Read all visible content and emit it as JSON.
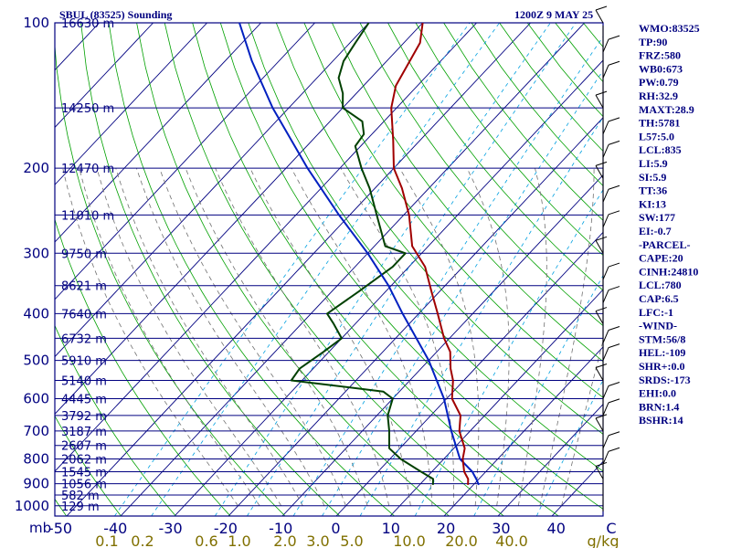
{
  "header": {
    "station": "SBUL (83525) Sounding",
    "time": "1200Z  9 MAY 25"
  },
  "indices": [
    "WMO:83525",
    "TP:90",
    "FRZ:580",
    "WB0:673",
    "PW:0.79",
    "RH:32.9",
    "MAXT:28.9",
    "TH:5781",
    "L57:5.0",
    "LCL:835",
    "LI:5.9",
    "SI:5.9",
    "TT:36",
    "KI:13",
    "SW:177",
    "EI:-0.7",
    "-PARCEL-",
    "CAPE:20",
    "CINH:24810",
    "LCL:780",
    "CAP:6.5",
    "LFC:-1",
    "-WIND-",
    "STM:56/8",
    "HEL:-109",
    "SHR+:0.0",
    "SRDS:-173",
    "EHI:0.0",
    "BRN:1.4",
    "BSHR:14"
  ],
  "chart_data": {
    "type": "skew-t log-p",
    "title": "SBUL (83525) Sounding",
    "date": "1200Z  9 MAY 25",
    "pressure_ticks": [
      "100",
      "200",
      "300",
      "400",
      "500",
      "600",
      "700",
      "800",
      "900",
      "1000"
    ],
    "pressure_unit": "mb",
    "temperature_ticks": [
      "-50",
      "-40",
      "-30",
      "-20",
      "-10",
      "0",
      "10",
      "20",
      "30",
      "40",
      "C"
    ],
    "mixing_ratio_ticks": [
      "0.1",
      "0.2",
      "0.6",
      "1.0",
      "2.0",
      "3.0",
      "5.0",
      "10.0",
      "20.0",
      "40.0",
      "g/kg"
    ],
    "height_labels": [
      {
        "p": 100,
        "label": "16630 m"
      },
      {
        "p": 150,
        "label": "14250 m"
      },
      {
        "p": 200,
        "label": "12470 m"
      },
      {
        "p": 250,
        "label": "11010 m"
      },
      {
        "p": 300,
        "label": "9750 m"
      },
      {
        "p": 350,
        "label": "8621 m"
      },
      {
        "p": 400,
        "label": "7640 m"
      },
      {
        "p": 450,
        "label": "6732 m"
      },
      {
        "p": 500,
        "label": "5910 m"
      },
      {
        "p": 550,
        "label": "5140 m"
      },
      {
        "p": 600,
        "label": "4445 m"
      },
      {
        "p": 650,
        "label": "3792 m"
      },
      {
        "p": 700,
        "label": "3187 m"
      },
      {
        "p": 750,
        "label": "2607 m"
      },
      {
        "p": 800,
        "label": "2062 m"
      },
      {
        "p": 850,
        "label": "1545 m"
      },
      {
        "p": 900,
        "label": "1056 m"
      },
      {
        "p": 950,
        "label": "582 m"
      },
      {
        "p": 1000,
        "label": "129 m"
      }
    ],
    "temperature": [
      {
        "p": 905,
        "t": 19.0
      },
      {
        "p": 880,
        "t": 18.0
      },
      {
        "p": 850,
        "t": 16.0
      },
      {
        "p": 800,
        "t": 13.5
      },
      {
        "p": 760,
        "t": 12.0
      },
      {
        "p": 700,
        "t": 8.0
      },
      {
        "p": 650,
        "t": 5.5
      },
      {
        "p": 600,
        "t": 1.0
      },
      {
        "p": 550,
        "t": -2.0
      },
      {
        "p": 520,
        "t": -4.5
      },
      {
        "p": 480,
        "t": -7.5
      },
      {
        "p": 450,
        "t": -11.0
      },
      {
        "p": 400,
        "t": -16.5
      },
      {
        "p": 360,
        "t": -21.5
      },
      {
        "p": 320,
        "t": -27.0
      },
      {
        "p": 290,
        "t": -33.0
      },
      {
        "p": 250,
        "t": -39.0
      },
      {
        "p": 220,
        "t": -45.0
      },
      {
        "p": 200,
        "t": -50.0
      },
      {
        "p": 175,
        "t": -55.0
      },
      {
        "p": 150,
        "t": -61.0
      },
      {
        "p": 135,
        "t": -64.0
      },
      {
        "p": 110,
        "t": -67.0
      },
      {
        "p": 100,
        "t": -70.0
      }
    ],
    "dewpoint": [
      {
        "p": 905,
        "t": 12.5
      },
      {
        "p": 880,
        "t": 11.5
      },
      {
        "p": 850,
        "t": 8.0
      },
      {
        "p": 800,
        "t": 2.0
      },
      {
        "p": 760,
        "t": -2.0
      },
      {
        "p": 700,
        "t": -5.0
      },
      {
        "p": 650,
        "t": -8.0
      },
      {
        "p": 600,
        "t": -10.0
      },
      {
        "p": 580,
        "t": -13.0
      },
      {
        "p": 550,
        "t": -32.0
      },
      {
        "p": 520,
        "t": -32.5
      },
      {
        "p": 480,
        "t": -31.0
      },
      {
        "p": 450,
        "t": -30.0
      },
      {
        "p": 420,
        "t": -34.0
      },
      {
        "p": 400,
        "t": -37.0
      },
      {
        "p": 360,
        "t": -35.0
      },
      {
        "p": 320,
        "t": -33.0
      },
      {
        "p": 300,
        "t": -33.0
      },
      {
        "p": 290,
        "t": -38.0
      },
      {
        "p": 250,
        "t": -45.0
      },
      {
        "p": 220,
        "t": -51.0
      },
      {
        "p": 200,
        "t": -56.0
      },
      {
        "p": 180,
        "t": -61.0
      },
      {
        "p": 170,
        "t": -61.5
      },
      {
        "p": 160,
        "t": -64.0
      },
      {
        "p": 150,
        "t": -70.0
      },
      {
        "p": 140,
        "t": -72.5
      },
      {
        "p": 130,
        "t": -76.0
      },
      {
        "p": 120,
        "t": -78.0
      },
      {
        "p": 110,
        "t": -79.0
      },
      {
        "p": 100,
        "t": -80.0
      }
    ],
    "parcel": [
      {
        "p": 905,
        "t": 21.0
      },
      {
        "p": 880,
        "t": 19.5
      },
      {
        "p": 850,
        "t": 17.5
      },
      {
        "p": 800,
        "t": 13.0
      },
      {
        "p": 700,
        "t": 6.5
      },
      {
        "p": 600,
        "t": -0.5
      },
      {
        "p": 500,
        "t": -10.0
      },
      {
        "p": 400,
        "t": -23.0
      },
      {
        "p": 350,
        "t": -30.5
      },
      {
        "p": 300,
        "t": -40.0
      },
      {
        "p": 250,
        "t": -52.0
      },
      {
        "p": 200,
        "t": -66.0
      },
      {
        "p": 150,
        "t": -83.0
      },
      {
        "p": 120,
        "t": -95.0
      },
      {
        "p": 100,
        "t": -104.0
      }
    ],
    "wind_levels": [
      {
        "p": 100
      },
      {
        "p": 115
      },
      {
        "p": 130
      },
      {
        "p": 150
      },
      {
        "p": 170
      },
      {
        "p": 190
      },
      {
        "p": 210
      },
      {
        "p": 235
      },
      {
        "p": 265
      },
      {
        "p": 300
      },
      {
        "p": 340
      },
      {
        "p": 380
      },
      {
        "p": 420
      },
      {
        "p": 460
      },
      {
        "p": 500
      },
      {
        "p": 550
      },
      {
        "p": 600
      },
      {
        "p": 650
      },
      {
        "p": 700
      },
      {
        "p": 760
      },
      {
        "p": 820
      },
      {
        "p": 880
      }
    ],
    "colors": {
      "temperature": "#a00000",
      "dewpoint": "#004000",
      "parcel": "#0020c0",
      "isobar": "#000080",
      "isotherm": "#000080",
      "dry_adiabat": "#00a000",
      "moist_adiabat": "#707070",
      "mixing_ratio": "#00a0e0",
      "mixing_label": "#807000"
    }
  }
}
